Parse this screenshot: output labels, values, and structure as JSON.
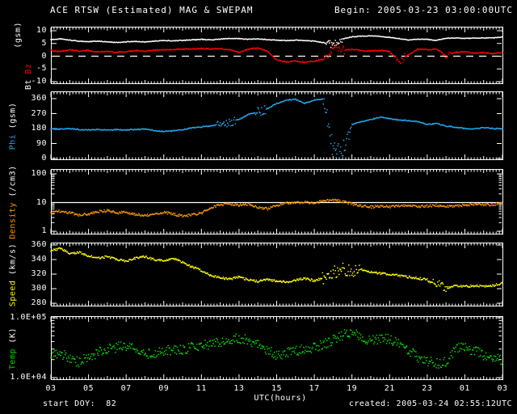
{
  "header": {
    "title": "ACE RTSW (Estimated) MAG & SWEPAM",
    "begin": "Begin: 2005-03-23 03:00:00UTC"
  },
  "footer": {
    "xlabel": "UTC(hours)",
    "start_doy": "start DOY:  82",
    "created": "created: 2005-03-24 02:55:12UTC"
  },
  "colors": {
    "background": "#000000",
    "frame": "#ffffff",
    "bt": "#ffffff",
    "bz": "#ff0000",
    "phi": "#22aaee",
    "density": "#ff9900",
    "speed": "#ffff00",
    "temp": "#00dd00"
  },
  "chart_data": {
    "type": "scatter",
    "subtype": "multi-panel-time-series",
    "title": "ACE RTSW (Estimated) MAG & SWEPAM",
    "x_axis": {
      "label": "UTC(hours)",
      "range_hours": [
        3,
        27
      ],
      "tick_labels": [
        "03",
        "05",
        "07",
        "09",
        "11",
        "13",
        "15",
        "17",
        "19",
        "21",
        "23",
        "01",
        "03"
      ],
      "tick_hours": [
        3,
        5,
        7,
        9,
        11,
        13,
        15,
        17,
        19,
        21,
        23,
        25,
        27
      ]
    },
    "x_hours": [
      3,
      3.5,
      4,
      4.5,
      5,
      5.5,
      6,
      6.5,
      7,
      7.5,
      8,
      8.5,
      9,
      9.5,
      10,
      10.5,
      11,
      11.5,
      12,
      12.5,
      13,
      13.5,
      14,
      14.5,
      15,
      15.5,
      16,
      16.5,
      17,
      17.5,
      18,
      18.5,
      19,
      19.5,
      20,
      20.5,
      21,
      21.5,
      22,
      22.5,
      23,
      23.5,
      24,
      24.5,
      25,
      25.5,
      26,
      26.5,
      27
    ],
    "panels": [
      {
        "id": "mag",
        "scale": "linear",
        "ymin": -10,
        "ymax": 10,
        "yticks": [
          {
            "v": 10,
            "label": "10"
          },
          {
            "v": 5,
            "label": "5"
          },
          {
            "v": 0,
            "label": "0"
          },
          {
            "v": -5,
            "label": "-5"
          },
          {
            "v": -10,
            "label": "-10"
          }
        ],
        "gridlines": [
          {
            "v": 0,
            "style": "dashed"
          }
        ],
        "ylabel_parts": [
          {
            "text": "(gsm)",
            "color": "#ffffff",
            "line": 1
          },
          {
            "text": "Bt ",
            "color": "#ffffff",
            "line": 2
          },
          {
            "text": "Bz",
            "color": "#ff0000",
            "line": 2
          }
        ],
        "series": [
          {
            "name": "Bt",
            "unit": "nT",
            "color": "#ffffff",
            "noise": 0.12,
            "bursts": [
              [
                17.6,
                18.5,
                1.2
              ]
            ],
            "values": [
              6.5,
              6.8,
              6.3,
              5.9,
              5.7,
              5.9,
              5.6,
              5.4,
              5.6,
              5.8,
              5.6,
              5.9,
              6.2,
              6.0,
              6.2,
              6.4,
              6.6,
              6.4,
              6.7,
              7.0,
              6.9,
              6.6,
              6.8,
              6.5,
              6.3,
              6.1,
              6.3,
              6.1,
              5.9,
              5.3,
              4.6,
              6.8,
              7.6,
              7.9,
              8.0,
              7.8,
              7.4,
              6.9,
              6.4,
              6.7,
              6.6,
              6.2,
              7.0,
              7.2,
              7.0,
              7.1,
              7.2,
              7.2,
              7.5
            ]
          },
          {
            "name": "Bz",
            "unit": "nT",
            "color": "#ff0000",
            "noise": 0.2,
            "bursts": [
              [
                17.6,
                18.6,
                1.8
              ],
              [
                21.3,
                21.8,
                1.5
              ],
              [
                23.8,
                24.3,
                0.8
              ]
            ],
            "values": [
              2.2,
              1.8,
              2.5,
              2.0,
              2.3,
              1.6,
              1.9,
              1.5,
              1.8,
              2.2,
              2.0,
              2.3,
              2.5,
              2.6,
              2.8,
              2.9,
              3.0,
              2.8,
              3.0,
              2.5,
              1.5,
              2.8,
              3.2,
              2.0,
              -1.5,
              -2.2,
              -1.8,
              -2.5,
              -2.0,
              -1.2,
              4.0,
              2.0,
              2.8,
              2.2,
              2.0,
              2.3,
              1.8,
              -2.0,
              0.5,
              2.8,
              2.6,
              2.8,
              0.2,
              1.5,
              1.8,
              1.2,
              1.5,
              1.0,
              1.5
            ]
          }
        ]
      },
      {
        "id": "phi",
        "scale": "linear",
        "ymin": 0,
        "ymax": 360,
        "yticks": [
          {
            "v": 360,
            "label": "360"
          },
          {
            "v": 270,
            "label": "270"
          },
          {
            "v": 180,
            "label": "180"
          },
          {
            "v": 90,
            "label": "90"
          },
          {
            "v": 0,
            "label": "0"
          }
        ],
        "gridlines": [],
        "ylabel_parts": [
          {
            "text": "Phi",
            "color": "#22aaee",
            "line": 1
          },
          {
            "text": " (gsm)",
            "color": "#ffffff",
            "line": 1
          }
        ],
        "series": [
          {
            "name": "Phi",
            "unit": "deg",
            "color": "#22aaee",
            "noise": 3,
            "bursts": [
              [
                11.8,
                12.8,
                20
              ],
              [
                13.8,
                14.4,
                25
              ],
              [
                17.4,
                18.9,
                55
              ]
            ],
            "values": [
              178,
              176,
              180,
              174,
              172,
              175,
              170,
              173,
              171,
              174,
              177,
              168,
              163,
              166,
              172,
              185,
              190,
              195,
              205,
              215,
              235,
              265,
              280,
              300,
              330,
              350,
              357,
              332,
              352,
              358,
              40,
              30,
              205,
              220,
              235,
              248,
              240,
              232,
              228,
              222,
              205,
              210,
              195,
              188,
              180,
              178,
              185,
              180,
              178
            ]
          }
        ]
      },
      {
        "id": "density",
        "scale": "log",
        "ymin": 1,
        "ymax": 100,
        "yticks": [
          {
            "v": 100,
            "label": "100"
          },
          {
            "v": 10,
            "label": "10"
          },
          {
            "v": 1,
            "label": "1"
          }
        ],
        "gridlines": [
          {
            "v": 10,
            "style": "solid"
          }
        ],
        "ylabel_parts": [
          {
            "text": "Density",
            "color": "#ff9900",
            "line": 1
          },
          {
            "text": " (/cm3)",
            "color": "#ffffff",
            "line": 1
          }
        ],
        "series": [
          {
            "name": "Density",
            "unit": "/cm3",
            "color": "#ff9900",
            "noise": 0.045,
            "bursts": [],
            "values": [
              4.2,
              5.0,
              4.5,
              3.6,
              4.0,
              4.8,
              5.2,
              4.3,
              4.8,
              3.9,
              3.5,
              4.1,
              4.6,
              3.9,
              3.4,
              3.7,
              4.3,
              6.5,
              8.5,
              9.0,
              8.0,
              8.5,
              7.0,
              6.0,
              8.0,
              9.5,
              10.0,
              10.5,
              9.5,
              11.5,
              12.5,
              11.0,
              9.0,
              7.5,
              7.0,
              7.5,
              7.2,
              7.8,
              8.2,
              7.2,
              7.6,
              8.0,
              7.2,
              7.6,
              8.2,
              8.6,
              8.2,
              8.6,
              9.5
            ]
          }
        ]
      },
      {
        "id": "speed",
        "scale": "linear",
        "ymin": 280,
        "ymax": 360,
        "yticks": [
          {
            "v": 360,
            "label": "360"
          },
          {
            "v": 340,
            "label": "340"
          },
          {
            "v": 320,
            "label": "320"
          },
          {
            "v": 300,
            "label": "300"
          },
          {
            "v": 280,
            "label": "280"
          }
        ],
        "gridlines": [],
        "ylabel_parts": [
          {
            "text": "Speed",
            "color": "#ffff00",
            "line": 1
          },
          {
            "text": " (km/s)",
            "color": "#ffffff",
            "line": 1
          }
        ],
        "series": [
          {
            "name": "Speed",
            "unit": "km/s",
            "color": "#ffff00",
            "noise": 1.5,
            "bursts": [
              [
                17.4,
                19.4,
                7
              ],
              [
                23.0,
                24.0,
                4
              ]
            ],
            "values": [
              352,
              355,
              348,
              350,
              345,
              342,
              344,
              340,
              338,
              342,
              344,
              340,
              338,
              342,
              336,
              330,
              325,
              318,
              315,
              313,
              316,
              312,
              310,
              312,
              311,
              309,
              312,
              314,
              311,
              315,
              322,
              328,
              324,
              326,
              323,
              321,
              320,
              318,
              316,
              314,
              313,
              308,
              301,
              304,
              303,
              304,
              303,
              304,
              308
            ]
          }
        ]
      },
      {
        "id": "temp",
        "scale": "log",
        "ymin": 10000,
        "ymax": 100000,
        "yticks": [
          {
            "v": 100000,
            "label": "1.0E+05"
          },
          {
            "v": 10000,
            "label": "1.0E+04"
          }
        ],
        "gridlines": [],
        "ylabel_parts": [
          {
            "text": "Temp",
            "color": "#00dd00",
            "line": 1
          },
          {
            "text": " (K)",
            "color": "#ffffff",
            "line": 1
          }
        ],
        "series": [
          {
            "name": "Temp",
            "unit": "K",
            "color": "#00dd00",
            "noise": 0.085,
            "bursts": [],
            "values": [
              22000,
              26000,
              20000,
              18000,
              22000,
              26000,
              30000,
              32000,
              34000,
              30000,
              26000,
              24000,
              28000,
              30000,
              29000,
              32000,
              34000,
              36000,
              40000,
              44000,
              46000,
              42000,
              36000,
              28000,
              24000,
              26000,
              28000,
              30000,
              32000,
              36000,
              42000,
              52000,
              58000,
              48000,
              40000,
              46000,
              44000,
              36000,
              28000,
              22000,
              19000,
              17000,
              18000,
              30000,
              32000,
              28000,
              24000,
              22000,
              20000
            ]
          }
        ]
      }
    ]
  }
}
